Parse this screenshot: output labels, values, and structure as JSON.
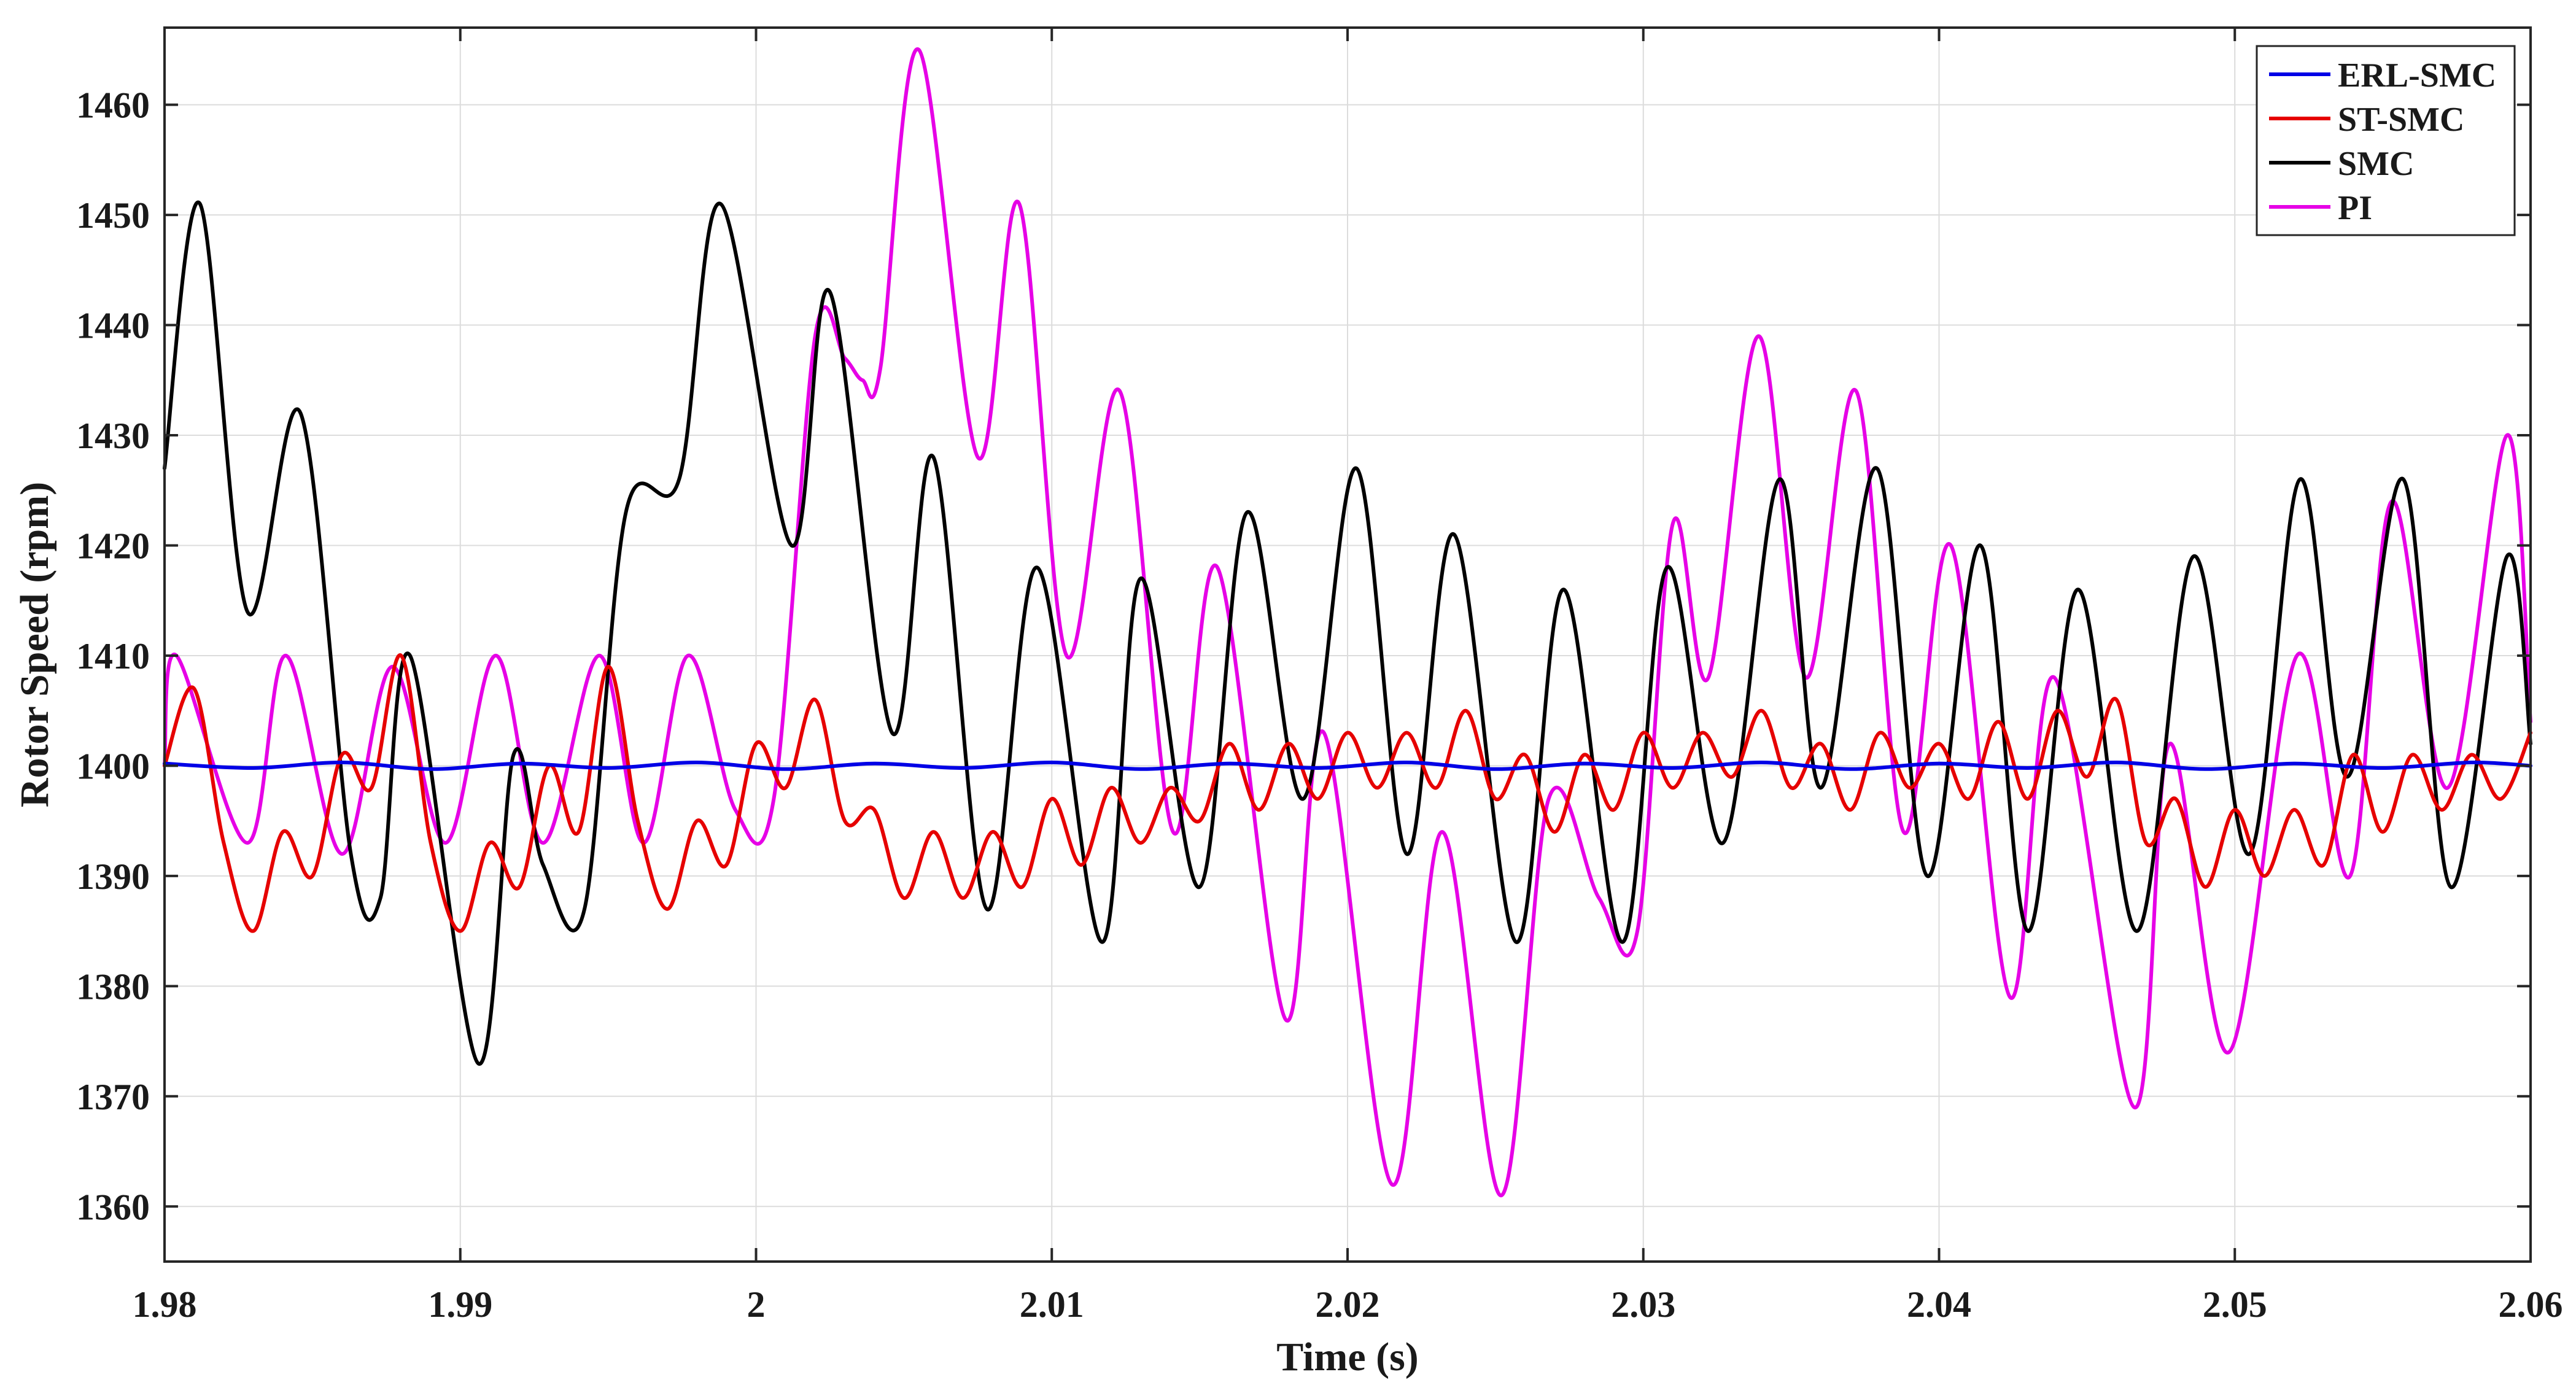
{
  "chart_data": {
    "type": "line",
    "title": "",
    "xlabel": "Time (s)",
    "ylabel": "Rotor Speed (rpm)",
    "xlim": [
      1.98,
      2.06
    ],
    "ylim": [
      1355,
      1467
    ],
    "xticks": [
      1.98,
      1.99,
      2.0,
      2.01,
      2.02,
      2.03,
      2.04,
      2.05,
      2.06
    ],
    "xtick_labels": [
      "1.98",
      "1.99",
      "2",
      "2.01",
      "2.02",
      "2.03",
      "2.04",
      "2.05",
      "2.06"
    ],
    "yticks": [
      1360,
      1370,
      1380,
      1390,
      1400,
      1410,
      1420,
      1430,
      1440,
      1450,
      1460
    ],
    "ytick_labels": [
      "1360",
      "1370",
      "1380",
      "1390",
      "1400",
      "1410",
      "1420",
      "1430",
      "1440",
      "1450",
      "1460"
    ],
    "grid": true,
    "legend_position": "top-right",
    "series": [
      {
        "name": "ERL-SMC",
        "color": "#0000e6",
        "x": [
          1.98,
          1.983,
          1.986,
          1.989,
          1.992,
          1.995,
          1.998,
          2.001,
          2.004,
          2.007,
          2.01,
          2.013,
          2.016,
          2.019,
          2.022,
          2.025,
          2.028,
          2.031,
          2.034,
          2.037,
          2.04,
          2.043,
          2.046,
          2.049,
          2.052,
          2.055,
          2.058,
          2.06
        ],
        "y": [
          1400.2,
          1399.8,
          1400.3,
          1399.7,
          1400.2,
          1399.8,
          1400.3,
          1399.7,
          1400.2,
          1399.8,
          1400.3,
          1399.7,
          1400.2,
          1399.8,
          1400.3,
          1399.7,
          1400.2,
          1399.8,
          1400.3,
          1399.7,
          1400.2,
          1399.8,
          1400.3,
          1399.7,
          1400.2,
          1399.8,
          1400.3,
          1400.0
        ]
      },
      {
        "name": "ST-SMC",
        "color": "#e60000",
        "x": [
          1.98,
          1.981,
          1.982,
          1.983,
          1.984,
          1.985,
          1.986,
          1.987,
          1.988,
          1.989,
          1.99,
          1.991,
          1.992,
          1.993,
          1.994,
          1.995,
          1.996,
          1.997,
          1.998,
          1.999,
          2.0,
          2.001,
          2.002,
          2.003,
          2.004,
          2.005,
          2.006,
          2.007,
          2.008,
          2.009,
          2.01,
          2.011,
          2.012,
          2.013,
          2.014,
          2.015,
          2.016,
          2.017,
          2.018,
          2.019,
          2.02,
          2.021,
          2.022,
          2.023,
          2.024,
          2.025,
          2.026,
          2.027,
          2.028,
          2.029,
          2.03,
          2.031,
          2.032,
          2.033,
          2.034,
          2.035,
          2.036,
          2.037,
          2.038,
          2.039,
          2.04,
          2.041,
          2.042,
          2.043,
          2.044,
          2.045,
          2.046,
          2.047,
          2.048,
          2.049,
          2.05,
          2.051,
          2.052,
          2.053,
          2.054,
          2.055,
          2.056,
          2.057,
          2.058,
          2.059,
          2.06
        ],
        "y": [
          1400,
          1407,
          1393,
          1385,
          1394,
          1390,
          1401,
          1398,
          1410,
          1393,
          1385,
          1393,
          1389,
          1400,
          1394,
          1409,
          1395,
          1387,
          1395,
          1391,
          1402,
          1398,
          1406,
          1395,
          1396,
          1388,
          1394,
          1388,
          1394,
          1389,
          1397,
          1391,
          1398,
          1393,
          1398,
          1395,
          1402,
          1396,
          1402,
          1397,
          1403,
          1398,
          1403,
          1398,
          1405,
          1397,
          1401,
          1394,
          1401,
          1396,
          1403,
          1398,
          1403,
          1399,
          1405,
          1398,
          1402,
          1396,
          1403,
          1398,
          1402,
          1397,
          1404,
          1397,
          1405,
          1399,
          1406,
          1393,
          1397,
          1389,
          1396,
          1390,
          1396,
          1391,
          1401,
          1394,
          1401,
          1396,
          1401,
          1397,
          1403
        ]
      },
      {
        "name": "SMC",
        "color": "#000000",
        "x": [
          1.98,
          1.9812,
          1.9828,
          1.9846,
          1.9863,
          1.9873,
          1.9883,
          1.9906,
          1.9918,
          1.9928,
          1.9942,
          1.9956,
          1.9974,
          1.9988,
          2.0012,
          2.0025,
          2.0046,
          2.006,
          2.0078,
          2.0095,
          2.0117,
          2.013,
          2.015,
          2.0166,
          2.0185,
          2.0203,
          2.022,
          2.0236,
          2.0257,
          2.0273,
          2.0293,
          2.0308,
          2.0327,
          2.0346,
          2.036,
          2.0379,
          2.0396,
          2.0414,
          2.043,
          2.0447,
          2.0467,
          2.0486,
          2.0505,
          2.0522,
          2.0538,
          2.0557,
          2.0573,
          2.0592,
          2.06
        ],
        "y": [
          1427,
          1451,
          1414,
          1432,
          1392,
          1388,
          1410,
          1373,
          1401,
          1391,
          1387,
          1423,
          1426,
          1451,
          1420,
          1443,
          1403,
          1428,
          1387,
          1418,
          1384,
          1417,
          1389,
          1423,
          1397,
          1427,
          1392,
          1421,
          1384,
          1416,
          1384,
          1418,
          1393,
          1426,
          1398,
          1427,
          1390,
          1420,
          1385,
          1416,
          1385,
          1419,
          1392,
          1426,
          1399,
          1426,
          1389,
          1419,
          1402
        ]
      },
      {
        "name": "PI",
        "color": "#e600e6",
        "x": [
          1.98,
          1.9804,
          1.9828,
          1.9841,
          1.986,
          1.9877,
          1.9895,
          1.9912,
          1.9928,
          1.9947,
          1.9962,
          1.9977,
          1.9993,
          2.0006,
          2.002,
          2.003,
          2.0036,
          2.0042,
          2.0055,
          2.0075,
          2.0089,
          2.0105,
          2.0123,
          2.0141,
          2.0156,
          2.0179,
          2.0192,
          2.0215,
          2.0232,
          2.0252,
          2.0268,
          2.0285,
          2.0298,
          2.031,
          2.0322,
          2.0339,
          2.0355,
          2.0372,
          2.0388,
          2.0404,
          2.0424,
          2.0439,
          2.0466,
          2.0478,
          2.0498,
          2.0521,
          2.0539,
          2.0553,
          2.0572,
          2.0592,
          2.06
        ],
        "y": [
          1400,
          1410,
          1393,
          1410,
          1392,
          1409,
          1393,
          1410,
          1393,
          1410,
          1393,
          1410,
          1396,
          1397,
          1439,
          1437,
          1435,
          1436,
          1465,
          1428,
          1451,
          1410,
          1434,
          1394,
          1418,
          1377,
          1403,
          1362,
          1394,
          1361,
          1397,
          1388,
          1385,
          1422,
          1408,
          1439,
          1408,
          1434,
          1394,
          1420,
          1379,
          1408,
          1369,
          1402,
          1374,
          1410,
          1390,
          1424,
          1398,
          1430,
          1404
        ]
      }
    ]
  }
}
